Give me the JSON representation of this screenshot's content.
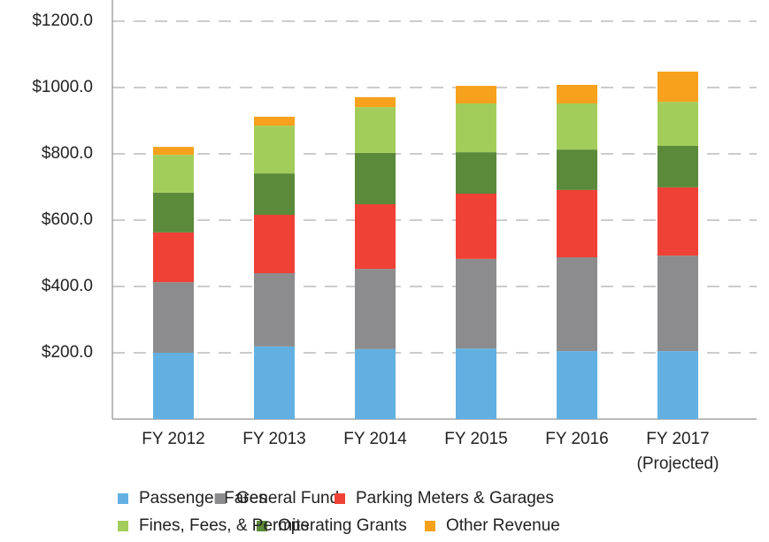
{
  "chart_data": {
    "type": "stacked_bar",
    "categories": [
      "FY 2012",
      "FY 2013",
      "FY 2014",
      "FY 2015",
      "FY 2016",
      "FY 2017\n(Projected)"
    ],
    "series": [
      {
        "name": "Passenger Fares",
        "color": "#62b0e2",
        "values": [
          200,
          219,
          211,
          213,
          205,
          205
        ]
      },
      {
        "name": "General Fund",
        "color": "#8c8c8e",
        "values": [
          213,
          221,
          242,
          270,
          283,
          288
        ]
      },
      {
        "name": "Parking Meters & Garages",
        "color": "#ef4136",
        "values": [
          150,
          176,
          195,
          197,
          203,
          206
        ]
      },
      {
        "name": "Operating Grants",
        "color": "#5b8a3a",
        "values": [
          120,
          125,
          155,
          125,
          122,
          125
        ]
      },
      {
        "name": "Fines, Fees, & Permits",
        "color": "#a3cd5b",
        "values": [
          114,
          144,
          138,
          147,
          139,
          133
        ]
      },
      {
        "name": "Other Revenue",
        "color": "#f7a11d",
        "values": [
          24,
          27,
          30,
          53,
          56,
          91
        ]
      }
    ],
    "ylim": [
      0,
      1200
    ],
    "yticks": [
      {
        "value": 200,
        "label": "$200.0"
      },
      {
        "value": 400,
        "label": "$400.0"
      },
      {
        "value": 600,
        "label": "$600.0"
      },
      {
        "value": 800,
        "label": "$800.0"
      },
      {
        "value": 1000,
        "label": "$1000.0"
      },
      {
        "value": 1200,
        "label": "$1200.0"
      }
    ],
    "grid": true
  }
}
